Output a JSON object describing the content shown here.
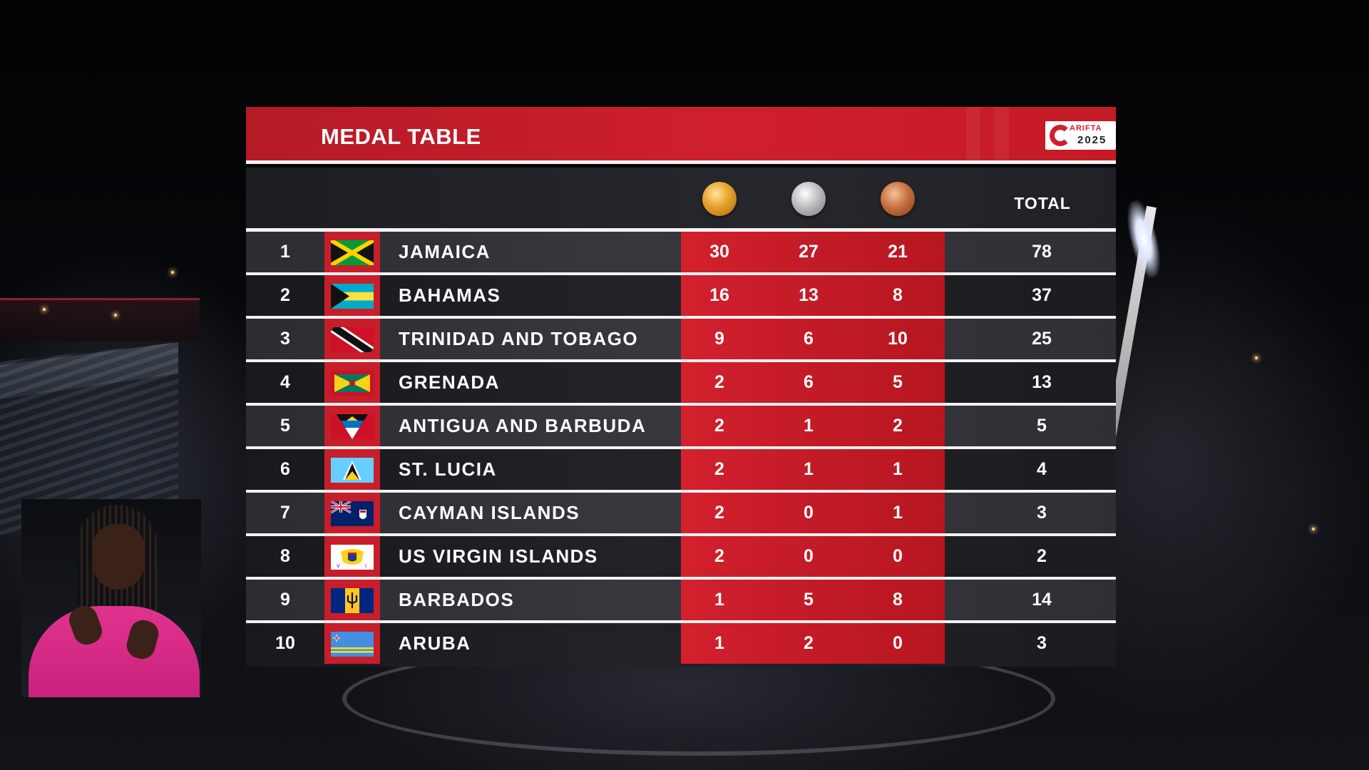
{
  "header": {
    "title": "MEDAL TABLE",
    "logo": {
      "word": "ARIFTA",
      "year": "2025",
      "accent": "#d01f2c"
    }
  },
  "columns": {
    "gold_icon": "gold-medal-icon",
    "silver_icon": "silver-medal-icon",
    "bronze_icon": "bronze-medal-icon",
    "total_label": "TOTAL"
  },
  "colors": {
    "header_red": "#d01f2c",
    "medal_column_red": "#c21b27",
    "divider": "#f2f2f2"
  },
  "rows": [
    {
      "rank": "1",
      "flag": "jamaica-flag-icon",
      "country": "JAMAICA",
      "gold": "30",
      "silver": "27",
      "bronze": "21",
      "total": "78"
    },
    {
      "rank": "2",
      "flag": "bahamas-flag-icon",
      "country": "BAHAMAS",
      "gold": "16",
      "silver": "13",
      "bronze": "8",
      "total": "37"
    },
    {
      "rank": "3",
      "flag": "trinidad-and-tobago-flag-icon",
      "country": "TRINIDAD AND TOBAGO",
      "gold": "9",
      "silver": "6",
      "bronze": "10",
      "total": "25"
    },
    {
      "rank": "4",
      "flag": "grenada-flag-icon",
      "country": "GRENADA",
      "gold": "2",
      "silver": "6",
      "bronze": "5",
      "total": "13"
    },
    {
      "rank": "5",
      "flag": "antigua-and-barbuda-flag-icon",
      "country": "ANTIGUA AND BARBUDA",
      "gold": "2",
      "silver": "1",
      "bronze": "2",
      "total": "5"
    },
    {
      "rank": "6",
      "flag": "st-lucia-flag-icon",
      "country": "ST. LUCIA",
      "gold": "2",
      "silver": "1",
      "bronze": "1",
      "total": "4"
    },
    {
      "rank": "7",
      "flag": "cayman-islands-flag-icon",
      "country": "CAYMAN ISLANDS",
      "gold": "2",
      "silver": "0",
      "bronze": "1",
      "total": "3"
    },
    {
      "rank": "8",
      "flag": "us-virgin-islands-flag-icon",
      "country": "US VIRGIN ISLANDS",
      "gold": "2",
      "silver": "0",
      "bronze": "0",
      "total": "2"
    },
    {
      "rank": "9",
      "flag": "barbados-flag-icon",
      "country": "BARBADOS",
      "gold": "1",
      "silver": "5",
      "bronze": "8",
      "total": "14"
    },
    {
      "rank": "10",
      "flag": "aruba-flag-icon",
      "country": "ARUBA",
      "gold": "1",
      "silver": "2",
      "bronze": "0",
      "total": "3"
    }
  ]
}
